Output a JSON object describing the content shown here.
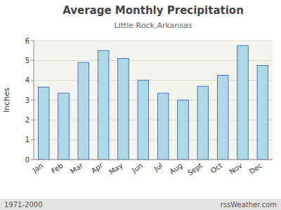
{
  "chart_data": {
    "type": "bar",
    "title": "Average Monthly Precipitation",
    "subtitle": "Little Rock,Arkansas",
    "y_label": "Inches",
    "annotations": [
      "1971-2000",
      "rssWeather.com"
    ],
    "categories": [
      "Jan",
      "Feb",
      "Mar",
      "Apr",
      "May",
      "Jun",
      "Jul",
      "Aug",
      "Sept",
      "Oct",
      "Nov",
      "Dec"
    ],
    "values": [
      3.65,
      3.35,
      4.9,
      5.5,
      5.1,
      4.0,
      3.35,
      3.0,
      3.7,
      4.25,
      5.75,
      4.75
    ],
    "color": "#ADD8E6",
    "ylim": [
      0,
      6.0
    ],
    "yticks": [
      0,
      1,
      2,
      3,
      4,
      5,
      6
    ],
    "grid": true
  }
}
